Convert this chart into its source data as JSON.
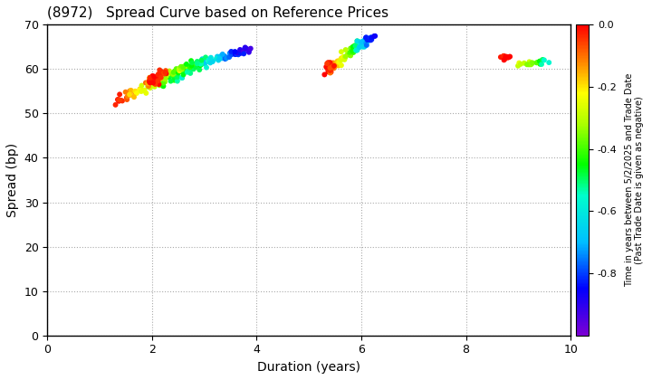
{
  "title": "(8972)   Spread Curve based on Reference Prices",
  "xlabel": "Duration (years)",
  "ylabel": "Spread (bp)",
  "xlim": [
    0,
    10
  ],
  "ylim": [
    0,
    70
  ],
  "xticks": [
    0,
    2,
    4,
    6,
    8,
    10
  ],
  "yticks": [
    0,
    10,
    20,
    30,
    40,
    50,
    60,
    70
  ],
  "colorbar_label_line1": "Time in years between 5/2/2025 and Trade Date",
  "colorbar_label_line2": "(Past Trade Date is given as negative)",
  "clim_min": -1.0,
  "clim_max": 0.0,
  "cticks": [
    0.0,
    -0.2,
    -0.4,
    -0.6,
    -0.8
  ],
  "point_size": 18,
  "bg_color": "#ffffff",
  "colormap_nodes": [
    [
      0.0,
      "#7b00d4"
    ],
    [
      0.15,
      "#0000ff"
    ],
    [
      0.3,
      "#00bfff"
    ],
    [
      0.45,
      "#00ffcc"
    ],
    [
      0.55,
      "#00ff00"
    ],
    [
      0.68,
      "#aaff00"
    ],
    [
      0.78,
      "#ffff00"
    ],
    [
      0.88,
      "#ff8800"
    ],
    [
      1.0,
      "#ff0000"
    ]
  ]
}
